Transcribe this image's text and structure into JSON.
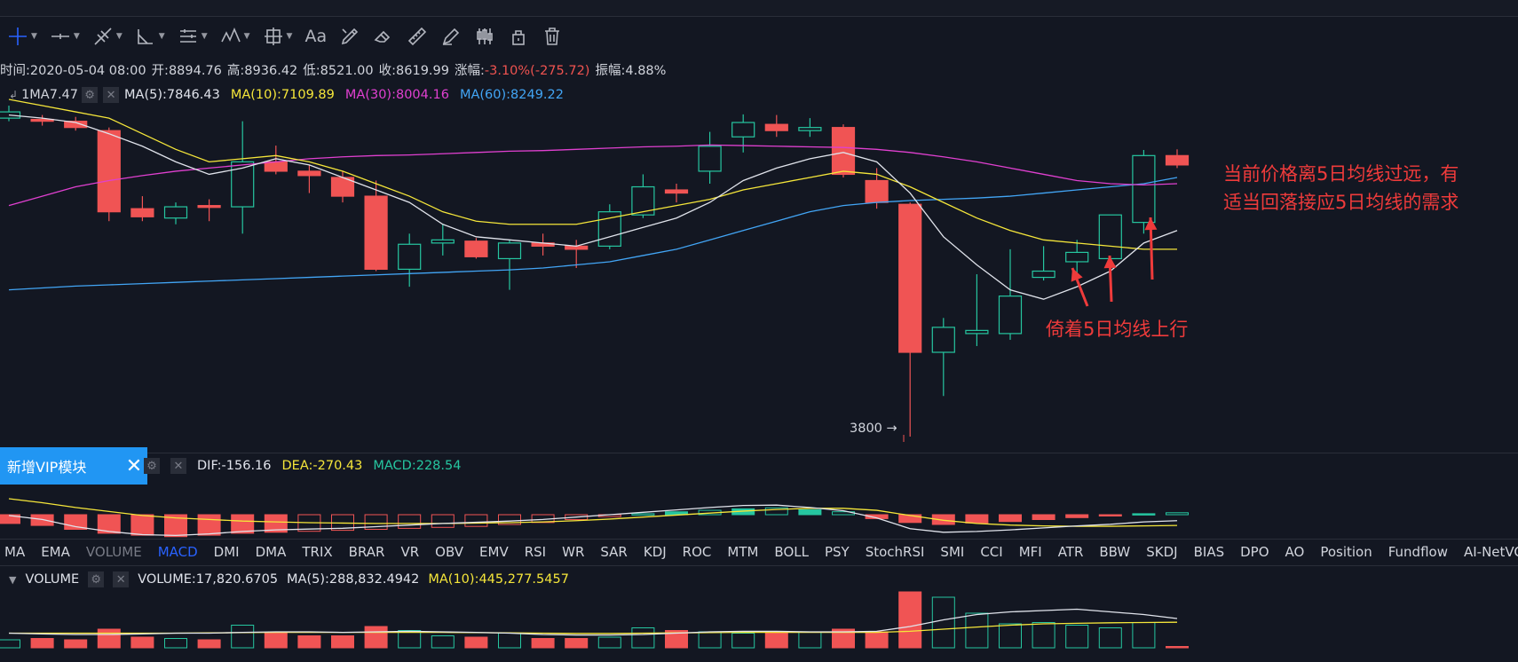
{
  "toolbar": {
    "tools": [
      "crosshair-icon",
      "horizontal-line-icon",
      "trend-line-icon",
      "angle-icon",
      "parallel-channel-icon",
      "wave-icon",
      "measure-icon",
      "text-icon",
      "brush-icon",
      "eraser-icon",
      "ruler-icon",
      "pencil-icon",
      "candlestick-icon",
      "lock-icon",
      "trash-icon"
    ],
    "text_tool": "Aa"
  },
  "info": {
    "time": "时间:2020-05-04 08:00",
    "open": "开:8894.76",
    "high": "高:8936.42",
    "low": "低:8521.00",
    "close": "收:8619.99",
    "change_label": "涨幅:",
    "change_value": "-3.10%(-275.72)",
    "amplitude": "振幅:4.88%"
  },
  "ma_legend": {
    "prefix": "1MA7.47",
    "ma5": "MA(5):7846.43",
    "ma10": "MA(10):7109.89",
    "ma30": "MA(30):8004.16",
    "ma60": "MA(60):8249.22"
  },
  "colors": {
    "up": "#26c6a0",
    "down": "#f05454",
    "ma5": "#e0e3eb",
    "ma10": "#f5e63a",
    "ma30": "#e040d0",
    "ma60": "#42a5f5",
    "annotation": "#ef3b3b",
    "vip_bg": "#2196f3"
  },
  "price_chart": {
    "low_marker": "3800 →",
    "candles": [
      {
        "o": 8900,
        "h": 9100,
        "l": 8850,
        "c": 9000
      },
      {
        "o": 8880,
        "h": 8950,
        "l": 8780,
        "c": 8850
      },
      {
        "o": 8850,
        "h": 8920,
        "l": 8700,
        "c": 8750
      },
      {
        "o": 8700,
        "h": 8750,
        "l": 7250,
        "c": 7400
      },
      {
        "o": 7450,
        "h": 7650,
        "l": 7250,
        "c": 7320
      },
      {
        "o": 7300,
        "h": 7550,
        "l": 7200,
        "c": 7480
      },
      {
        "o": 7500,
        "h": 7600,
        "l": 7250,
        "c": 7470
      },
      {
        "o": 7480,
        "h": 8850,
        "l": 7050,
        "c": 8200
      },
      {
        "o": 8200,
        "h": 8460,
        "l": 8000,
        "c": 8050
      },
      {
        "o": 8050,
        "h": 8150,
        "l": 7700,
        "c": 7980
      },
      {
        "o": 7950,
        "h": 8050,
        "l": 7550,
        "c": 7650
      },
      {
        "o": 7650,
        "h": 7900,
        "l": 6450,
        "c": 6480
      },
      {
        "o": 6480,
        "h": 7050,
        "l": 6200,
        "c": 6880
      },
      {
        "o": 6900,
        "h": 7200,
        "l": 6700,
        "c": 6950
      },
      {
        "o": 6930,
        "h": 6980,
        "l": 6650,
        "c": 6680
      },
      {
        "o": 6650,
        "h": 6950,
        "l": 6150,
        "c": 6900
      },
      {
        "o": 6900,
        "h": 7050,
        "l": 6700,
        "c": 6850
      },
      {
        "o": 6850,
        "h": 6950,
        "l": 6500,
        "c": 6800
      },
      {
        "o": 6850,
        "h": 7520,
        "l": 6800,
        "c": 7400
      },
      {
        "o": 7350,
        "h": 8000,
        "l": 7300,
        "c": 7800
      },
      {
        "o": 7750,
        "h": 7850,
        "l": 7550,
        "c": 7700
      },
      {
        "o": 8050,
        "h": 8680,
        "l": 7850,
        "c": 8450
      },
      {
        "o": 8600,
        "h": 8960,
        "l": 8350,
        "c": 8830
      },
      {
        "o": 8800,
        "h": 8950,
        "l": 8600,
        "c": 8700
      },
      {
        "o": 8700,
        "h": 8900,
        "l": 8600,
        "c": 8750
      },
      {
        "o": 8750,
        "h": 8800,
        "l": 7950,
        "c": 8000
      },
      {
        "o": 7900,
        "h": 8100,
        "l": 7450,
        "c": 7550
      },
      {
        "o": 7520,
        "h": 7550,
        "l": 3800,
        "c": 5150
      },
      {
        "o": 5150,
        "h": 5700,
        "l": 4450,
        "c": 5550
      },
      {
        "o": 5450,
        "h": 6400,
        "l": 5250,
        "c": 5500
      },
      {
        "o": 5450,
        "h": 6800,
        "l": 5350,
        "c": 6050
      },
      {
        "o": 6350,
        "h": 6850,
        "l": 6300,
        "c": 6450
      },
      {
        "o": 6600,
        "h": 6950,
        "l": 6350,
        "c": 6750
      },
      {
        "o": 6650,
        "h": 7350,
        "l": 6400,
        "c": 7350
      },
      {
        "o": 7230,
        "h": 8390,
        "l": 7050,
        "c": 8300
      },
      {
        "o": 8300,
        "h": 8400,
        "l": 8100,
        "c": 8150
      }
    ],
    "ma5": [
      8950,
      8900,
      8830,
      8650,
      8450,
      8200,
      8000,
      8100,
      8250,
      8150,
      7950,
      7750,
      7550,
      7200,
      7000,
      6950,
      6900,
      6850,
      7000,
      7150,
      7300,
      7550,
      7900,
      8100,
      8250,
      8350,
      8200,
      7700,
      7000,
      6550,
      6150,
      6000,
      6200,
      6450,
      6900,
      7100
    ],
    "ma10": [
      9200,
      9100,
      9000,
      8900,
      8650,
      8400,
      8200,
      8250,
      8300,
      8200,
      8050,
      7850,
      7650,
      7400,
      7250,
      7200,
      7200,
      7200,
      7300,
      7400,
      7500,
      7600,
      7750,
      7850,
      7950,
      8050,
      8000,
      7800,
      7550,
      7300,
      7100,
      6950,
      6900,
      6850,
      6800,
      6800
    ],
    "ma30": [
      7500,
      7650,
      7800,
      7900,
      7980,
      8050,
      8100,
      8150,
      8200,
      8250,
      8280,
      8300,
      8310,
      8330,
      8350,
      8370,
      8380,
      8400,
      8420,
      8440,
      8450,
      8470,
      8460,
      8450,
      8440,
      8430,
      8400,
      8350,
      8280,
      8200,
      8100,
      8000,
      7900,
      7850,
      7830,
      7850
    ],
    "ma60": [
      6150,
      6180,
      6210,
      6230,
      6250,
      6270,
      6290,
      6310,
      6330,
      6350,
      6370,
      6390,
      6410,
      6430,
      6450,
      6470,
      6500,
      6550,
      6600,
      6700,
      6800,
      6950,
      7100,
      7250,
      7400,
      7500,
      7550,
      7580,
      7600,
      7620,
      7650,
      7700,
      7750,
      7800,
      7850,
      7950
    ]
  },
  "annotations": {
    "right_line1": "当前价格离5日均线过远，有",
    "right_line2": "适当回落接应5日均线的需求",
    "bottom": "倚着5日均线上行"
  },
  "vip": {
    "label": "新增VIP模块",
    "close": "✕"
  },
  "macd": {
    "dif": "DIF:-156.16",
    "dea": "DEA:-270.43",
    "macd": "MACD:228.54",
    "hist": [
      -180,
      -220,
      -300,
      -380,
      -420,
      -450,
      -420,
      -380,
      -360,
      -340,
      -320,
      -300,
      -280,
      -260,
      -240,
      -200,
      -160,
      -100,
      -40,
      20,
      60,
      90,
      120,
      140,
      100,
      60,
      -80,
      -160,
      -200,
      -170,
      -140,
      -100,
      -60,
      -20,
      20,
      40
    ],
    "dif_line": [
      -20,
      -120,
      -300,
      -420,
      -500,
      -520,
      -480,
      -420,
      -380,
      -360,
      -340,
      -300,
      -260,
      -220,
      -190,
      -160,
      -120,
      -60,
      0,
      60,
      120,
      180,
      230,
      240,
      180,
      100,
      -80,
      -350,
      -440,
      -420,
      -380,
      -330,
      -280,
      -240,
      -180,
      -150
    ],
    "dea_line": [
      400,
      300,
      180,
      80,
      -20,
      -80,
      -120,
      -160,
      -180,
      -200,
      -210,
      -220,
      -220,
      -220,
      -210,
      -200,
      -180,
      -150,
      -110,
      -60,
      -10,
      40,
      90,
      130,
      160,
      160,
      110,
      -20,
      -140,
      -220,
      -260,
      -280,
      -290,
      -290,
      -280,
      -270
    ]
  },
  "indicator_tabs": [
    "MA",
    "EMA",
    "VOLUME",
    "MACD",
    "DMI",
    "DMA",
    "TRIX",
    "BRAR",
    "VR",
    "OBV",
    "EMV",
    "RSI",
    "WR",
    "SAR",
    "KDJ",
    "ROC",
    "MTM",
    "BOLL",
    "PSY",
    "StochRSI",
    "SMI",
    "CCI",
    "MFI",
    "ATR",
    "BBW",
    "SKDJ",
    "BIAS",
    "DPO",
    "AO",
    "Position",
    "Fundflow",
    "AI-NetVOL"
  ],
  "active_tab": "MACD",
  "volume": {
    "label": "VOLUME",
    "value": "VOLUME:17,820.6705",
    "ma5": "MA(5):288,832.4942",
    "ma10": "MA(10):445,277.5457",
    "bars": [
      0.3,
      0.35,
      0.3,
      0.7,
      0.4,
      0.35,
      0.3,
      0.85,
      0.55,
      0.45,
      0.45,
      0.8,
      0.65,
      0.45,
      0.4,
      0.55,
      0.35,
      0.35,
      0.4,
      0.75,
      0.65,
      0.6,
      0.55,
      0.6,
      0.6,
      0.7,
      0.6,
      2.1,
      1.9,
      1.3,
      0.9,
      0.95,
      0.85,
      0.75,
      0.95,
      0.05
    ],
    "ma5_line": [
      0.55,
      0.52,
      0.5,
      0.5,
      0.52,
      0.55,
      0.55,
      0.58,
      0.6,
      0.6,
      0.58,
      0.6,
      0.62,
      0.6,
      0.58,
      0.55,
      0.5,
      0.48,
      0.48,
      0.5,
      0.55,
      0.6,
      0.62,
      0.62,
      0.6,
      0.6,
      0.62,
      0.8,
      1.05,
      1.25,
      1.35,
      1.4,
      1.45,
      1.35,
      1.25,
      1.1
    ],
    "ma10_line": [
      0.55,
      0.55,
      0.55,
      0.55,
      0.55,
      0.55,
      0.56,
      0.57,
      0.58,
      0.58,
      0.58,
      0.58,
      0.58,
      0.58,
      0.57,
      0.56,
      0.55,
      0.54,
      0.54,
      0.55,
      0.56,
      0.57,
      0.58,
      0.58,
      0.58,
      0.58,
      0.58,
      0.62,
      0.7,
      0.78,
      0.85,
      0.9,
      0.92,
      0.94,
      0.95,
      0.96
    ]
  }
}
